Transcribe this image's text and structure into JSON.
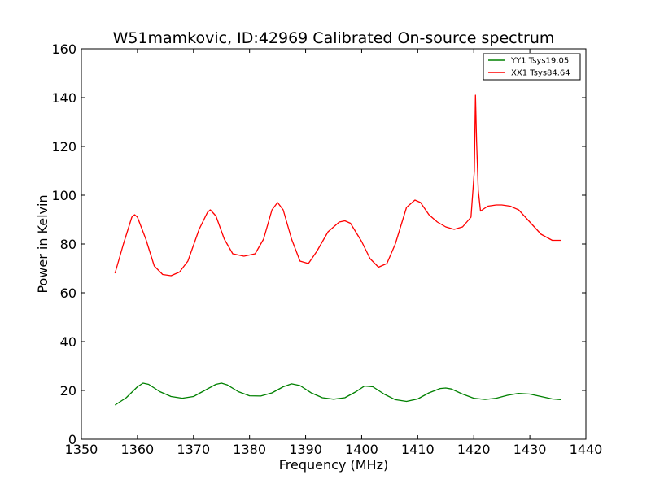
{
  "chart_data": {
    "type": "line",
    "title": "W51mamkovic, ID:42969 Calibrated On-source spectrum",
    "xlabel": "Frequency (MHz)",
    "ylabel": "Power in Kelvin",
    "xlim": [
      1350,
      1440
    ],
    "ylim": [
      0,
      160
    ],
    "xticks": [
      1350,
      1360,
      1370,
      1380,
      1390,
      1400,
      1410,
      1420,
      1430,
      1440
    ],
    "yticks": [
      0,
      20,
      40,
      60,
      80,
      100,
      120,
      140,
      160
    ],
    "grid": false,
    "legend_position": "top-right",
    "series": [
      {
        "name": "YY1 Tsys19.05",
        "color": "#008000",
        "x": [
          1356,
          1358,
          1360,
          1361,
          1362,
          1364,
          1366,
          1368,
          1370,
          1372,
          1374,
          1375,
          1376,
          1378,
          1380,
          1382,
          1384,
          1386,
          1387.5,
          1389,
          1391,
          1393,
          1395,
          1397,
          1399,
          1400.5,
          1402,
          1404,
          1406,
          1408,
          1410,
          1412,
          1414,
          1415,
          1416,
          1418,
          1420,
          1422,
          1424,
          1426,
          1428,
          1430,
          1432,
          1434,
          1435.5
        ],
        "y": [
          14,
          17,
          21.5,
          23,
          22.5,
          19.5,
          17.5,
          16.8,
          17.5,
          20,
          22.5,
          23,
          22.3,
          19.5,
          17.8,
          17.7,
          19,
          21.5,
          22.7,
          22,
          19,
          17,
          16.4,
          17,
          19.5,
          21.8,
          21.5,
          18.5,
          16.2,
          15.5,
          16.5,
          19,
          20.8,
          21,
          20.6,
          18.5,
          16.8,
          16.3,
          16.8,
          18,
          18.8,
          18.5,
          17.5,
          16.5,
          16.2
        ]
      },
      {
        "name": "XX1 Tsys84.64",
        "color": "#ff0000",
        "x": [
          1356,
          1357.5,
          1359,
          1359.5,
          1360,
          1361.5,
          1363,
          1364.5,
          1366,
          1367.5,
          1369,
          1371,
          1372.5,
          1373,
          1374,
          1375.5,
          1377,
          1379,
          1381,
          1382.5,
          1384,
          1385,
          1386,
          1387.5,
          1389,
          1390.5,
          1392,
          1394,
          1396,
          1397,
          1398,
          1400,
          1401.5,
          1403,
          1404.5,
          1406,
          1408,
          1409.5,
          1410.5,
          1412,
          1413.5,
          1415,
          1416.5,
          1418,
          1419.5,
          1420.1,
          1420.3,
          1420.5,
          1420.8,
          1421.2,
          1422.5,
          1424,
          1425,
          1426.5,
          1428,
          1430,
          1432,
          1434,
          1435.5
        ],
        "y": [
          68,
          80,
          91,
          92,
          91,
          82,
          71,
          67.5,
          67,
          68.5,
          73,
          86,
          93,
          94,
          91.5,
          82,
          76,
          75,
          76,
          82,
          94,
          97,
          94,
          82,
          73,
          72,
          77,
          85,
          89,
          89.5,
          88.5,
          81,
          74,
          70.5,
          72,
          80,
          95,
          98,
          97,
          92,
          89,
          87,
          86,
          87,
          91,
          110,
          141,
          122,
          102,
          93.5,
          95.5,
          96,
          96,
          95.5,
          94,
          89,
          84,
          81.5,
          81.5
        ]
      }
    ]
  }
}
